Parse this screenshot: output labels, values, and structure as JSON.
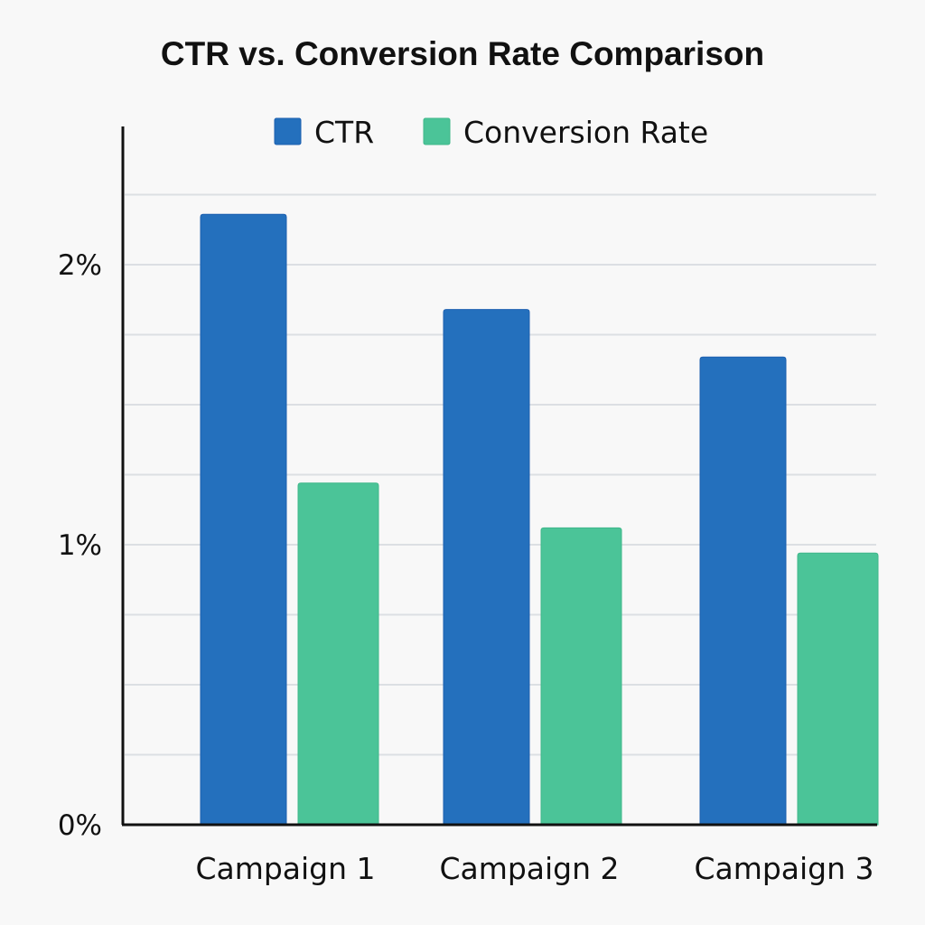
{
  "chart_data": {
    "type": "bar",
    "title": "CTR vs. Conversion Rate Comparison",
    "xlabel": "",
    "ylabel": "",
    "categories": [
      "Campaign 1",
      "Campaign 2",
      "Campaign 3"
    ],
    "series": [
      {
        "name": "CTR",
        "color": "#2470bd",
        "values": [
          2.18,
          1.84,
          1.67
        ]
      },
      {
        "name": "Conversion Rate",
        "color": "#4bc498",
        "values": [
          1.22,
          1.06,
          0.97
        ]
      }
    ],
    "unit": "%",
    "ylim": [
      0,
      2.5
    ],
    "yticks": [
      {
        "value": 0,
        "label": "0%"
      },
      {
        "value": 1,
        "label": "1%"
      },
      {
        "value": 2,
        "label": "2%"
      }
    ],
    "gridlines": [
      0.25,
      0.5,
      0.75,
      1,
      1.25,
      1.5,
      1.75,
      2,
      2.25
    ],
    "grid": true,
    "legend_position": "top-center"
  }
}
